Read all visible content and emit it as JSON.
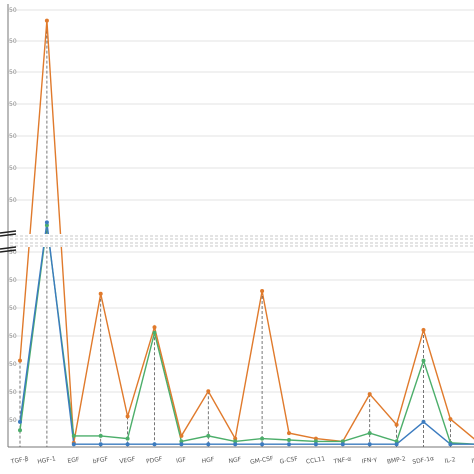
{
  "chart_data": {
    "type": "line",
    "title": "",
    "xlabel": "",
    "ylabel": "",
    "categories": [
      "TGF-β",
      "HGF-1",
      "EGF",
      "bFGF",
      "VEGF",
      "PDGF",
      "IGF",
      "HGF",
      "NGF",
      "GM-CSF",
      "G-CSF",
      "CCL11",
      "TNF-α",
      "IFN-γ",
      "BMP-2",
      "SDF-1α",
      "IL-2",
      "IL-4",
      "IL-10"
    ],
    "y_tick_labels_upper": [
      "50",
      "50",
      "50",
      "50",
      "50",
      "50",
      "50"
    ],
    "y_tick_labels_lower": [
      "50",
      "50",
      "50",
      "50",
      "50",
      "50",
      "50"
    ],
    "axis_break": true,
    "grid": true,
    "legend": "none",
    "series": [
      {
        "color": "#e07a2c",
        "values": [
          0.31,
          5.28,
          0.015,
          0.55,
          0.11,
          0.43,
          0.04,
          0.2,
          0.03,
          0.56,
          0.05,
          0.03,
          0.02,
          0.19,
          0.08,
          0.42,
          0.1,
          0.02,
          0.02
        ]
      },
      {
        "color": "#4cae6a",
        "values": [
          0.06,
          1.04,
          0.04,
          0.04,
          0.03,
          0.41,
          0.02,
          0.04,
          0.02,
          0.03,
          0.025,
          0.02,
          0.02,
          0.05,
          0.02,
          0.31,
          0.015,
          0.01,
          0.01
        ]
      },
      {
        "color": "#3b7bbf",
        "values": [
          0.09,
          1.1,
          0.01,
          0.01,
          0.01,
          0.01,
          0.01,
          0.01,
          0.01,
          0.01,
          0.01,
          0.01,
          0.01,
          0.01,
          0.01,
          0.09,
          0.01,
          0.01,
          0.01
        ]
      }
    ],
    "colors": {
      "grid": "#e3e3e3",
      "axis": "#777777",
      "dashed": "#555555",
      "break": "#222222"
    }
  }
}
